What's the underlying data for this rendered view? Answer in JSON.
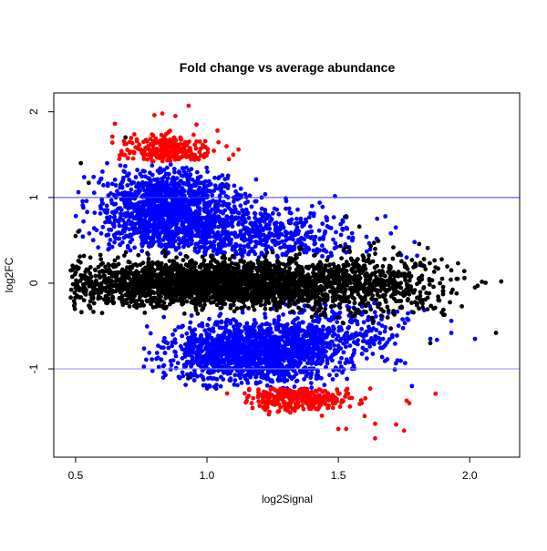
{
  "chart_data": {
    "type": "scatter",
    "title": "Fold change vs average abundance",
    "xlabel": "log2Signal",
    "ylabel": "log2FC",
    "xlim": [
      0.417,
      2.19
    ],
    "ylim": [
      -2.03,
      2.22
    ],
    "xticks": [
      0.5,
      1.0,
      1.5,
      2.0
    ],
    "xtick_labels": [
      "0.5",
      "1.0",
      "1.5",
      "2.0"
    ],
    "yticks": [
      -1,
      0,
      1,
      2
    ],
    "ytick_labels": [
      "-1",
      "0",
      "1",
      "2"
    ],
    "grid": false,
    "reference_lines": [
      {
        "y": 1,
        "color": "#3c3cf0"
      },
      {
        "y": -1,
        "color": "#8c8cff"
      }
    ],
    "colors": {
      "not_significant": "#000000",
      "significant": "#0000ff",
      "high_fold_change": "#ff0000"
    },
    "point_clouds": [
      {
        "group": "significant",
        "center": [
          0.86,
          0.85
        ],
        "spread": [
          0.22,
          0.38
        ],
        "ylim": [
          0.35,
          1.4
        ],
        "n": 1400
      },
      {
        "group": "significant",
        "center": [
          1.2,
          0.55
        ],
        "spread": [
          0.3,
          0.3
        ],
        "ylim": [
          0.3,
          1.3
        ],
        "n": 500
      },
      {
        "group": "significant",
        "center": [
          1.18,
          -0.8
        ],
        "spread": [
          0.26,
          0.3
        ],
        "ylim": [
          -1.25,
          -0.3
        ],
        "n": 1400
      },
      {
        "group": "significant",
        "center": [
          1.5,
          -0.55
        ],
        "spread": [
          0.22,
          0.35
        ],
        "ylim": [
          -1.25,
          -0.2
        ],
        "n": 300
      },
      {
        "group": "not_significant",
        "center": [
          1.05,
          0.0
        ],
        "spread": [
          0.5,
          0.22
        ],
        "ylim": [
          -0.6,
          0.6
        ],
        "n": 2600
      },
      {
        "group": "not_significant",
        "center": [
          1.65,
          0.0
        ],
        "spread": [
          0.25,
          0.35
        ],
        "ylim": [
          -0.7,
          0.6
        ],
        "n": 350
      },
      {
        "group": "high_fold_change",
        "center": [
          0.85,
          1.55
        ],
        "spread": [
          0.13,
          0.14
        ],
        "ylim": [
          1.42,
          2.0
        ],
        "n": 260
      },
      {
        "group": "high_fold_change",
        "center": [
          1.35,
          -1.33
        ],
        "spread": [
          0.17,
          0.13
        ],
        "ylim": [
          -1.85,
          -1.23
        ],
        "n": 300
      }
    ],
    "points": {
      "not_significant": [
        [
          0.52,
          1.4
        ],
        [
          0.55,
          1.17
        ],
        [
          0.69,
          1.7
        ],
        [
          0.51,
          0.6
        ],
        [
          0.5,
          0.55
        ],
        [
          1.53,
          0.77
        ],
        [
          1.58,
          0.66
        ],
        [
          1.64,
          0.4
        ],
        [
          1.78,
          0.27
        ],
        [
          1.84,
          0.41
        ],
        [
          1.88,
          0.17
        ],
        [
          1.93,
          0.15
        ],
        [
          1.95,
          0.05
        ],
        [
          1.98,
          0.06
        ],
        [
          2.03,
          -0.03
        ],
        [
          2.02,
          -0.05
        ],
        [
          2.12,
          0.02
        ],
        [
          1.93,
          -0.11
        ],
        [
          1.95,
          -0.12
        ],
        [
          1.97,
          -0.27
        ],
        [
          1.9,
          -0.31
        ],
        [
          1.85,
          -0.7
        ],
        [
          2.1,
          -0.58
        ],
        [
          1.81,
          -0.19
        ],
        [
          1.77,
          -0.13
        ],
        [
          0.93,
          -1.1
        ]
      ],
      "significant": [
        [
          0.62,
          1.4
        ],
        [
          0.61,
          0.85
        ],
        [
          0.53,
          0.72
        ],
        [
          1.7,
          0.58
        ],
        [
          1.79,
          0.48
        ],
        [
          1.8,
          0.32
        ],
        [
          1.76,
          0.3
        ],
        [
          1.9,
          -0.37
        ],
        [
          1.93,
          -0.44
        ],
        [
          1.93,
          -0.58
        ],
        [
          2.02,
          -0.65
        ],
        [
          1.78,
          -1.2
        ],
        [
          1.85,
          -0.65
        ],
        [
          1.3,
          0.99
        ],
        [
          1.4,
          0.9
        ],
        [
          1.44,
          0.89
        ],
        [
          0.85,
          -0.7
        ],
        [
          0.87,
          -0.6
        ]
      ],
      "high_fold_change": [
        [
          0.65,
          1.86
        ],
        [
          0.64,
          1.71
        ],
        [
          0.64,
          1.64
        ],
        [
          0.93,
          2.07
        ],
        [
          0.8,
          1.96
        ],
        [
          0.83,
          1.98
        ],
        [
          0.88,
          1.95
        ],
        [
          0.96,
          1.85
        ],
        [
          1.04,
          1.78
        ],
        [
          1.12,
          1.56
        ],
        [
          1.1,
          1.5
        ],
        [
          1.87,
          -1.29
        ],
        [
          1.77,
          -1.4
        ],
        [
          1.76,
          -1.37
        ],
        [
          1.75,
          -1.72
        ],
        [
          1.72,
          -1.65
        ],
        [
          1.64,
          -1.81
        ],
        [
          1.64,
          -1.64
        ],
        [
          1.53,
          -1.7
        ],
        [
          1.6,
          -1.55
        ],
        [
          1.5,
          -1.7
        ],
        [
          1.23,
          -1.45
        ],
        [
          1.2,
          -1.43
        ],
        [
          1.27,
          -1.5
        ]
      ]
    }
  }
}
